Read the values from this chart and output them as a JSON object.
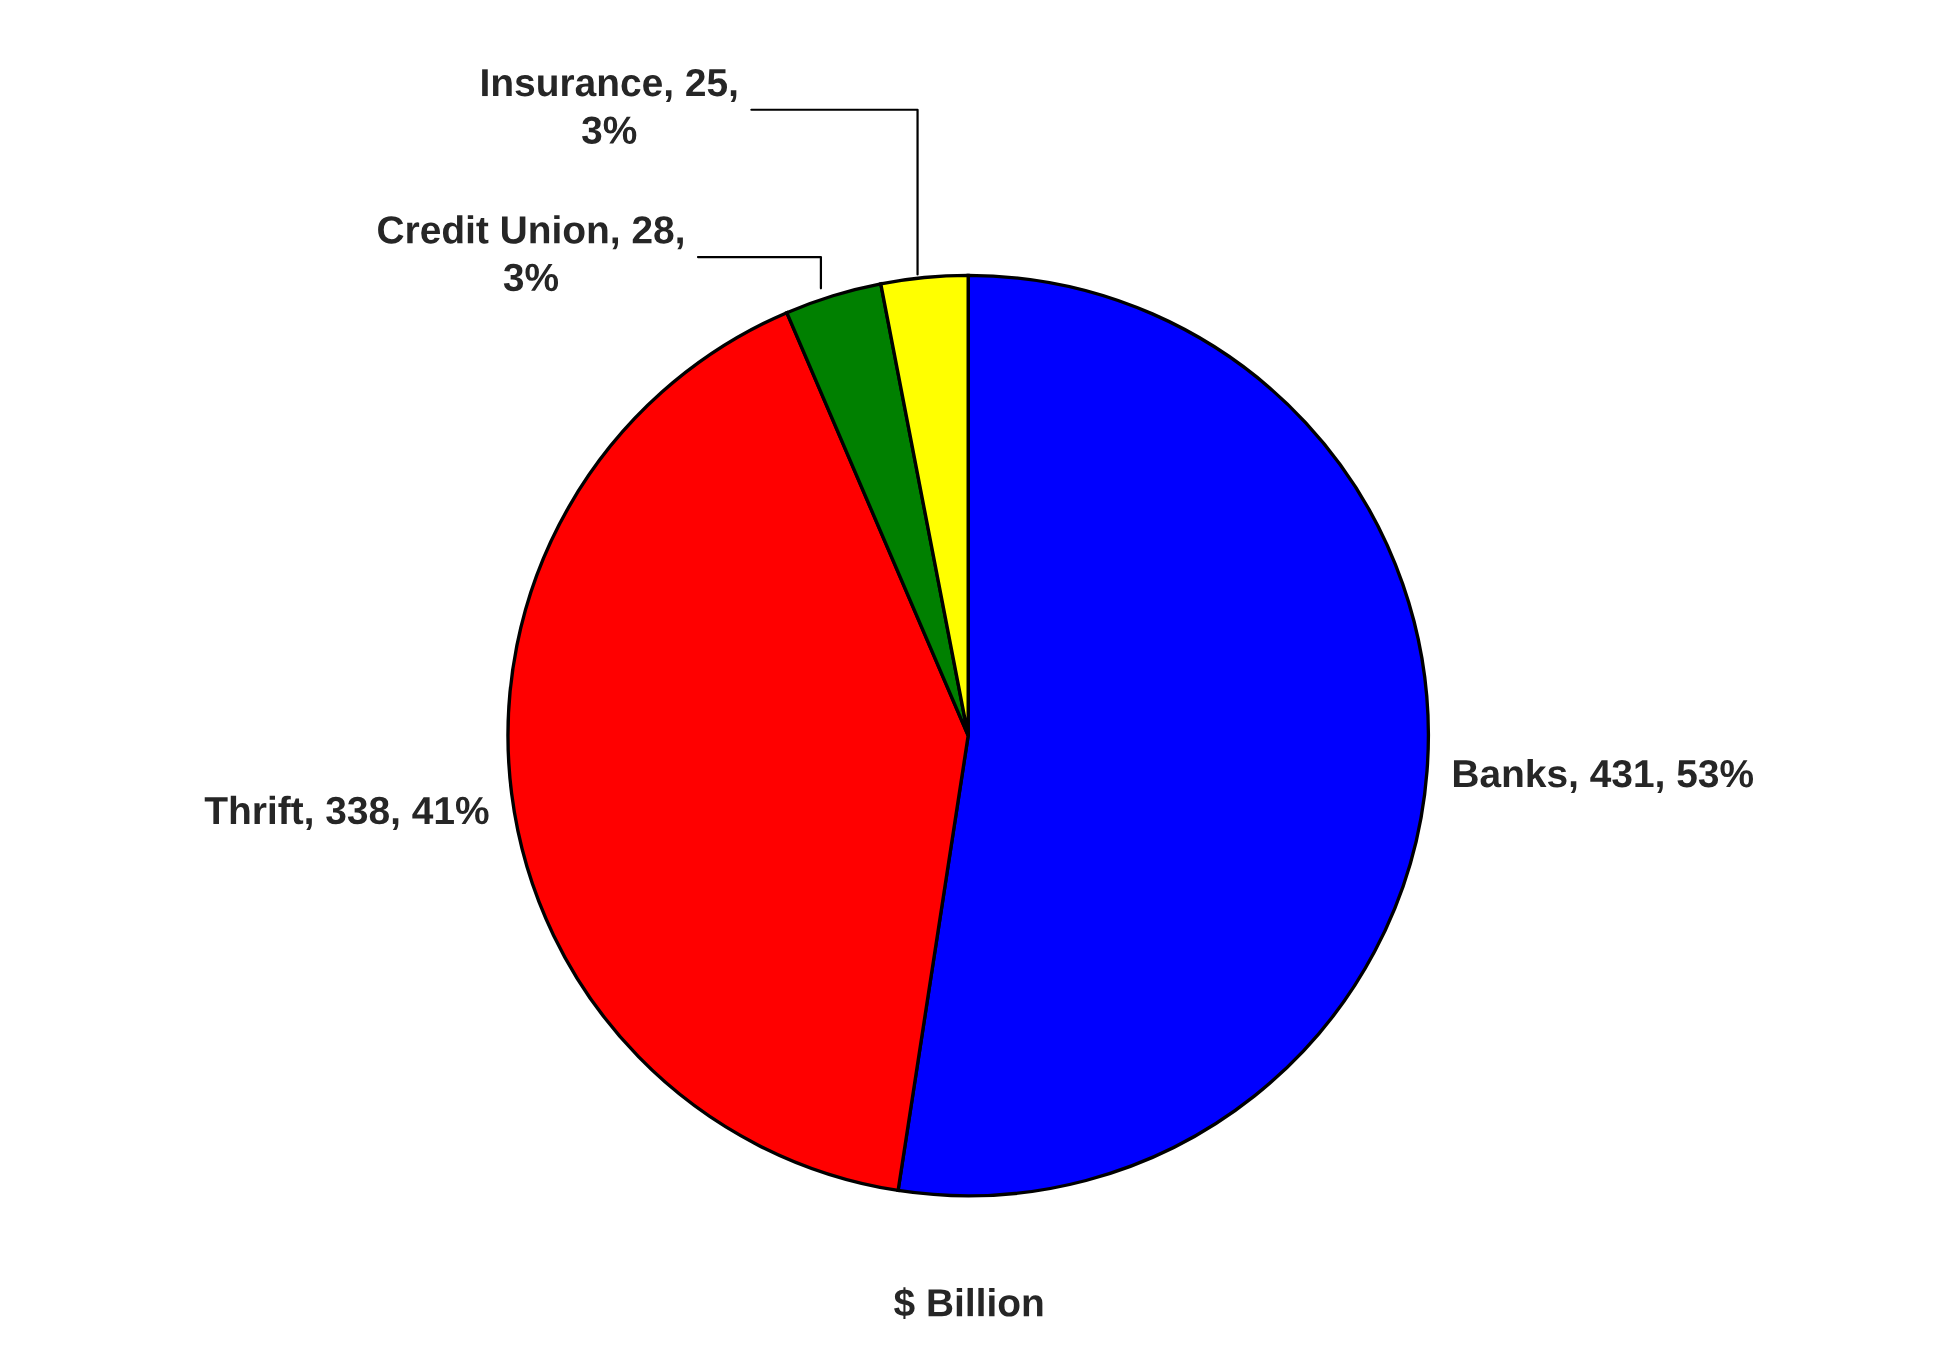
{
  "chart_data": {
    "type": "pie",
    "title": "$ Billion",
    "categories": [
      "Banks",
      "Thrift",
      "Credit Union",
      "Insurance"
    ],
    "values": [
      431,
      338,
      28,
      25
    ],
    "colors": [
      "#0000ff",
      "#ff0000",
      "#008000",
      "#ffff00"
    ],
    "value_labels": [
      "431, 53%",
      "338, 41%",
      "28,\n3%",
      "25,\n3%"
    ]
  }
}
